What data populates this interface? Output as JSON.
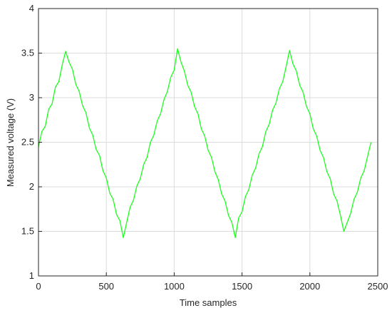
{
  "chart_data": {
    "type": "line",
    "xlabel": "Time samples",
    "ylabel": "Measured voltage (V)",
    "x": [
      0,
      25,
      50,
      75,
      100,
      125,
      150,
      175,
      200,
      225,
      250,
      275,
      300,
      325,
      350,
      375,
      400,
      425,
      450,
      475,
      500,
      525,
      550,
      575,
      600,
      625,
      650,
      675,
      700,
      725,
      750,
      775,
      800,
      825,
      850,
      875,
      900,
      925,
      950,
      975,
      1000,
      1025,
      1050,
      1075,
      1100,
      1125,
      1150,
      1175,
      1200,
      1225,
      1250,
      1275,
      1300,
      1325,
      1350,
      1375,
      1400,
      1425,
      1450,
      1475,
      1500,
      1525,
      1550,
      1575,
      1600,
      1625,
      1650,
      1675,
      1700,
      1725,
      1750,
      1775,
      1800,
      1825,
      1850,
      1875,
      1900,
      1925,
      1950,
      1975,
      2000,
      2025,
      2050,
      2075,
      2100,
      2125,
      2150,
      2175,
      2200,
      2225,
      2250,
      2275,
      2300,
      2325,
      2350,
      2375,
      2400,
      2425,
      2450
    ],
    "series": [
      {
        "name": "Measured voltage",
        "color": "#1aff1a",
        "values": [
          2.45,
          2.62,
          2.68,
          2.87,
          2.93,
          3.12,
          3.18,
          3.37,
          3.52,
          3.4,
          3.32,
          3.15,
          3.07,
          2.91,
          2.83,
          2.66,
          2.58,
          2.42,
          2.35,
          2.18,
          2.1,
          1.93,
          1.86,
          1.69,
          1.62,
          1.43,
          1.6,
          1.77,
          1.85,
          2.01,
          2.09,
          2.25,
          2.33,
          2.5,
          2.58,
          2.74,
          2.82,
          2.98,
          3.07,
          3.23,
          3.31,
          3.55,
          3.4,
          3.3,
          3.14,
          3.06,
          2.9,
          2.82,
          2.65,
          2.57,
          2.41,
          2.33,
          2.17,
          2.08,
          1.92,
          1.84,
          1.68,
          1.6,
          1.43,
          1.65,
          1.72,
          1.89,
          1.97,
          2.13,
          2.21,
          2.37,
          2.45,
          2.62,
          2.7,
          2.86,
          2.94,
          3.1,
          3.18,
          3.35,
          3.53,
          3.38,
          3.3,
          3.14,
          3.06,
          2.9,
          2.82,
          2.65,
          2.57,
          2.41,
          2.33,
          2.17,
          2.09,
          1.92,
          1.84,
          1.68,
          1.5,
          1.6,
          1.7,
          1.86,
          1.94,
          2.1,
          2.18,
          2.34,
          2.5
        ]
      }
    ],
    "xlim": [
      0,
      2500
    ],
    "xticks": [
      0,
      500,
      1000,
      1500,
      2000,
      2500
    ],
    "ylim": [
      1,
      4
    ],
    "yticks": [
      1,
      1.5,
      2,
      2.5,
      3,
      3.5,
      4
    ],
    "grid": true
  }
}
